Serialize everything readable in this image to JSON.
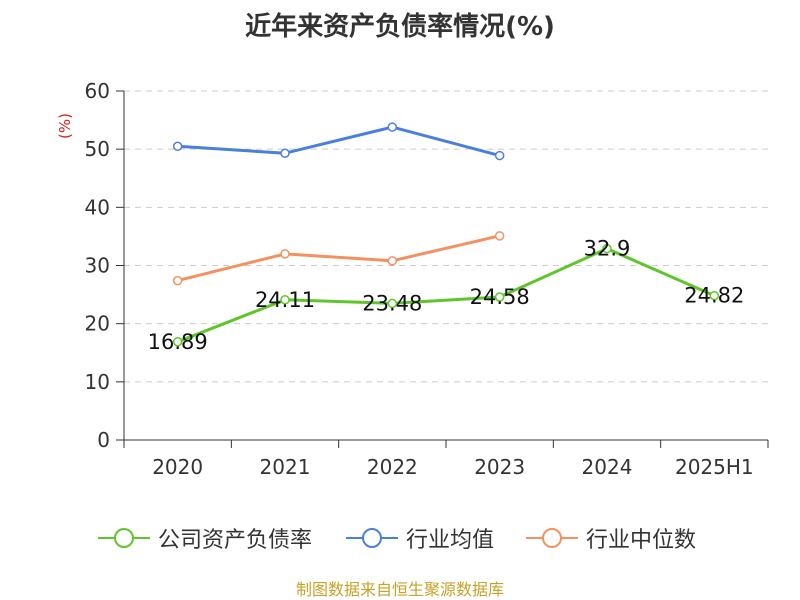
{
  "title": "近年来资产负债率情况(%)",
  "footer": "制图数据来自恒生聚源数据库",
  "chart_data": {
    "type": "line",
    "title": "近年来资产负债率情况(%)",
    "ylabel": "(%)",
    "xlabel": "",
    "ylim": [
      0,
      60
    ],
    "yticks": [
      "0",
      "10",
      "20",
      "30",
      "40",
      "50",
      "60"
    ],
    "categories": [
      "2020",
      "2021",
      "2022",
      "2023",
      "2024",
      "2025H1"
    ],
    "grid": true,
    "legend_position": "bottom",
    "series": [
      {
        "name": "公司资产负债率",
        "color": "#5ec62a",
        "values": [
          16.89,
          24.11,
          23.48,
          24.58,
          32.9,
          24.82
        ],
        "labels": [
          "16.89",
          "24.11",
          "23.48",
          "24.58",
          "32.9",
          "24.82"
        ]
      },
      {
        "name": "行业均值",
        "color": "#4a7fdb",
        "values": [
          50.5,
          49.3,
          53.8,
          48.9,
          null,
          null
        ]
      },
      {
        "name": "行业中位数",
        "color": "#f39161",
        "values": [
          27.4,
          32.0,
          30.8,
          35.1,
          null,
          null
        ]
      }
    ]
  }
}
